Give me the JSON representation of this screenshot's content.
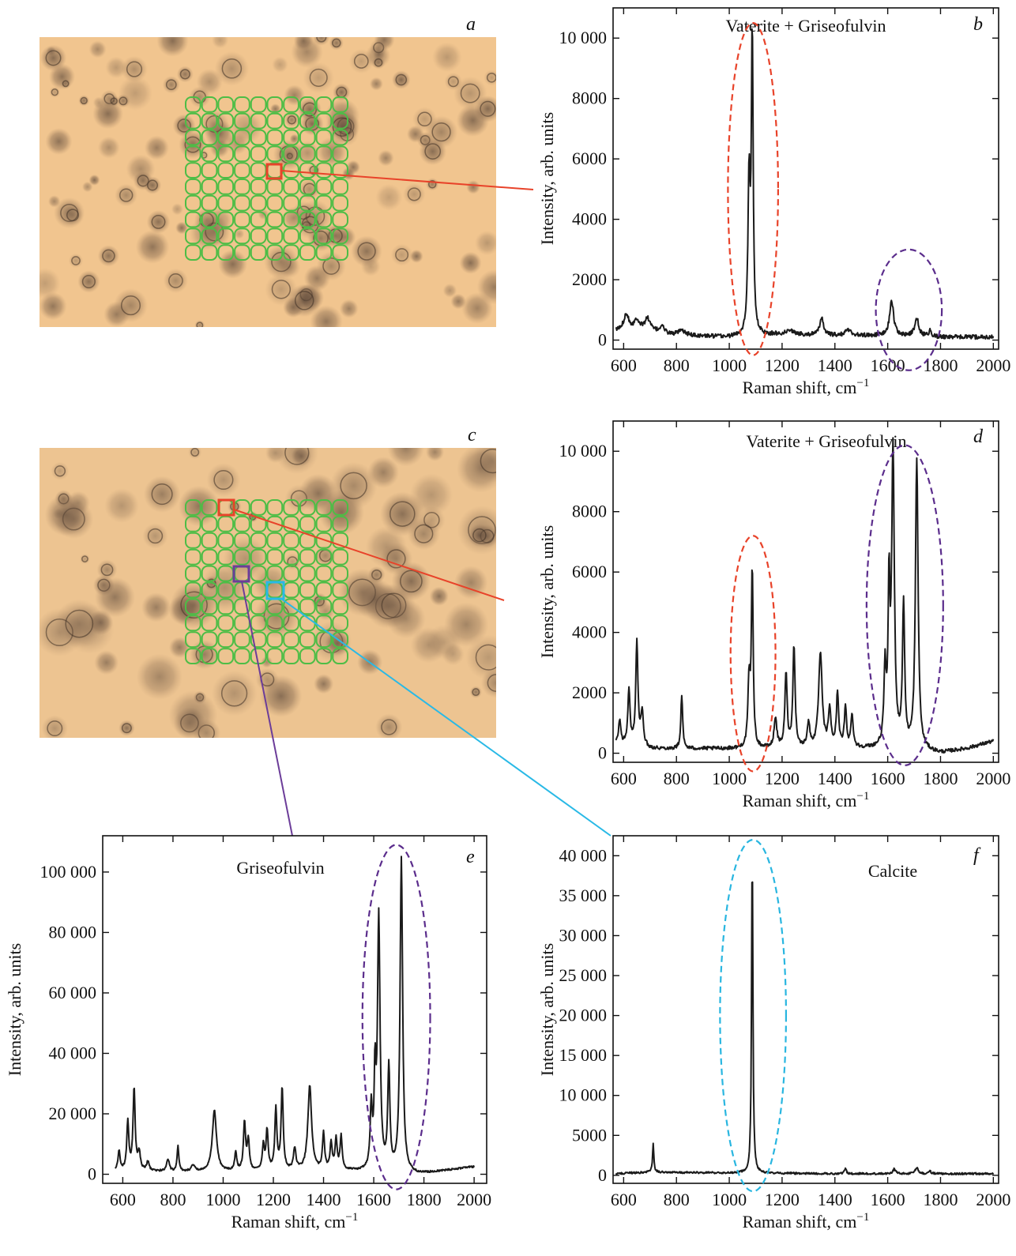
{
  "panels": {
    "a": {
      "letter": "a"
    },
    "c": {
      "letter": "c"
    }
  },
  "colors": {
    "line": "#1a1a1a",
    "grid_overlay": "#4dbd46",
    "photo_background": "#f0c48e",
    "red_marker": "#e8432a",
    "purple_marker": "#6c3d99",
    "cyan_marker": "#29b9e6",
    "red_ellipse": "#e8432a",
    "purple_ellipse": "#5b2d8c",
    "cyan_ellipse": "#29b6e0"
  },
  "chart_data": [
    {
      "id": "b",
      "letter": "b",
      "type": "line",
      "title": "Vaterite + Griseofulvin",
      "xlabel": "Raman shift, cm",
      "xlabel_sup": "−1",
      "ylabel": "Intensity, arb. units",
      "xlim": [
        560,
        2020
      ],
      "ylim": [
        -300,
        11000
      ],
      "xticks": [
        600,
        800,
        1000,
        1200,
        1400,
        1600,
        1800,
        2000
      ],
      "xtick_labels": [
        "600",
        "800",
        "1000",
        "1200",
        "1400",
        "1600",
        "1800",
        "2000"
      ],
      "yticks": [
        0,
        2000,
        4000,
        6000,
        8000,
        10000
      ],
      "ytick_labels": [
        "0",
        "2000",
        "4000",
        "6000",
        "8000",
        "10 000"
      ],
      "baseline": {
        "points": [
          [
            570,
            300
          ],
          [
            700,
            300
          ],
          [
            800,
            150
          ],
          [
            1000,
            100
          ],
          [
            1200,
            200
          ],
          [
            1400,
            150
          ],
          [
            1600,
            150
          ],
          [
            1800,
            100
          ],
          [
            2000,
            100
          ]
        ],
        "noise": 70
      },
      "peaks": [
        [
          610,
          550,
          12
        ],
        [
          650,
          350,
          12
        ],
        [
          690,
          400,
          12
        ],
        [
          745,
          250,
          8
        ],
        [
          820,
          150,
          20
        ],
        [
          1075,
          5100,
          5
        ],
        [
          1087,
          9800,
          4
        ],
        [
          1230,
          150,
          12
        ],
        [
          1350,
          600,
          8
        ],
        [
          1450,
          200,
          12
        ],
        [
          1615,
          1150,
          9
        ],
        [
          1710,
          600,
          9
        ],
        [
          1760,
          200,
          6
        ]
      ],
      "ellipses": [
        {
          "cx": 1090,
          "cy": 5000,
          "rx": 95,
          "ry": 5500,
          "color": "red"
        },
        {
          "cx": 1680,
          "cy": 1000,
          "rx": 125,
          "ry": 2000,
          "color": "purple"
        }
      ]
    },
    {
      "id": "d",
      "letter": "d",
      "type": "line",
      "title": "Vaterite + Griseofulvin",
      "xlabel": "Raman shift, cm",
      "xlabel_sup": "−1",
      "ylabel": "Intensity, arb. units",
      "xlim": [
        560,
        2020
      ],
      "ylim": [
        -300,
        11000
      ],
      "xticks": [
        600,
        800,
        1000,
        1200,
        1400,
        1600,
        1800,
        2000
      ],
      "xtick_labels": [
        "600",
        "800",
        "1000",
        "1200",
        "1400",
        "1600",
        "1800",
        "2000"
      ],
      "yticks": [
        0,
        2000,
        4000,
        6000,
        8000,
        10000
      ],
      "ytick_labels": [
        "0",
        "2000",
        "4000",
        "6000",
        "8000",
        "10 000"
      ],
      "baseline": {
        "points": [
          [
            570,
            300
          ],
          [
            700,
            150
          ],
          [
            900,
            150
          ],
          [
            1100,
            150
          ],
          [
            1300,
            150
          ],
          [
            1500,
            150
          ],
          [
            1700,
            100
          ],
          [
            1800,
            0
          ],
          [
            1900,
            150
          ],
          [
            2000,
            400
          ]
        ],
        "noise": 60
      },
      "peaks": [
        [
          585,
          800,
          5
        ],
        [
          620,
          1800,
          5
        ],
        [
          650,
          3400,
          5
        ],
        [
          670,
          1100,
          6
        ],
        [
          820,
          1800,
          4
        ],
        [
          1075,
          2200,
          5
        ],
        [
          1087,
          5900,
          4
        ],
        [
          1175,
          1000,
          6
        ],
        [
          1215,
          2500,
          5
        ],
        [
          1245,
          3400,
          5
        ],
        [
          1300,
          800,
          6
        ],
        [
          1345,
          3100,
          8
        ],
        [
          1380,
          1200,
          6
        ],
        [
          1410,
          1800,
          5
        ],
        [
          1440,
          1300,
          5
        ],
        [
          1465,
          1100,
          5
        ],
        [
          1590,
          2500,
          5
        ],
        [
          1605,
          5000,
          4
        ],
        [
          1620,
          9800,
          6
        ],
        [
          1660,
          4700,
          5
        ],
        [
          1710,
          9600,
          6
        ]
      ],
      "ellipses": [
        {
          "cx": 1090,
          "cy": 3300,
          "rx": 85,
          "ry": 3900,
          "color": "red"
        },
        {
          "cx": 1665,
          "cy": 4900,
          "rx": 145,
          "ry": 5300,
          "color": "purple"
        }
      ]
    },
    {
      "id": "e",
      "letter": "e",
      "type": "line",
      "title": "Griseofulvin",
      "xlabel": "Raman shift, cm",
      "xlabel_sup": "−1",
      "ylabel": "Intensity, arb. units",
      "xlim": [
        520,
        2050
      ],
      "ylim": [
        -3000,
        112000
      ],
      "xticks": [
        600,
        800,
        1000,
        1200,
        1400,
        1600,
        1800,
        2000
      ],
      "xtick_labels": [
        "600",
        "800",
        "1000",
        "1200",
        "1400",
        "1600",
        "1800",
        "2000"
      ],
      "yticks": [
        0,
        20000,
        40000,
        60000,
        80000,
        100000
      ],
      "ytick_labels": [
        "0",
        "20 000",
        "40 000",
        "60 000",
        "80 000",
        "100 000"
      ],
      "baseline": {
        "points": [
          [
            570,
            1000
          ],
          [
            900,
            800
          ],
          [
            1200,
            1000
          ],
          [
            1500,
            1000
          ],
          [
            1780,
            0
          ],
          [
            2000,
            2500
          ]
        ],
        "noise": 300
      },
      "peaks": [
        [
          585,
          6500,
          5
        ],
        [
          620,
          16000,
          5
        ],
        [
          645,
          27000,
          5
        ],
        [
          665,
          6000,
          6
        ],
        [
          700,
          3000,
          6
        ],
        [
          780,
          4000,
          6
        ],
        [
          820,
          8500,
          4
        ],
        [
          880,
          2000,
          8
        ],
        [
          965,
          20000,
          10
        ],
        [
          1050,
          6000,
          5
        ],
        [
          1085,
          16000,
          5
        ],
        [
          1100,
          10000,
          5
        ],
        [
          1160,
          8000,
          5
        ],
        [
          1175,
          13000,
          5
        ],
        [
          1210,
          20000,
          5
        ],
        [
          1235,
          27000,
          5
        ],
        [
          1285,
          7000,
          6
        ],
        [
          1345,
          28000,
          9
        ],
        [
          1400,
          12000,
          5
        ],
        [
          1430,
          9000,
          5
        ],
        [
          1450,
          10000,
          5
        ],
        [
          1470,
          11000,
          5
        ],
        [
          1590,
          20000,
          5
        ],
        [
          1605,
          29000,
          4
        ],
        [
          1620,
          84000,
          6
        ],
        [
          1660,
          34000,
          5
        ],
        [
          1710,
          104000,
          6
        ]
      ],
      "ellipses": [
        {
          "cx": 1690,
          "cy": 52000,
          "rx": 135,
          "ry": 57000,
          "color": "purple"
        }
      ]
    },
    {
      "id": "f",
      "letter": "f",
      "type": "line",
      "title": "Calcite",
      "xlabel": "Raman shift, cm",
      "xlabel_sup": "−1",
      "ylabel": "Intensity, arb. units",
      "xlim": [
        560,
        2020
      ],
      "ylim": [
        -1000,
        42500
      ],
      "xticks": [
        600,
        800,
        1000,
        1200,
        1400,
        1600,
        1800,
        2000
      ],
      "xtick_labels": [
        "600",
        "800",
        "1000",
        "1200",
        "1400",
        "1600",
        "1800",
        "2000"
      ],
      "yticks": [
        0,
        5000,
        10000,
        15000,
        20000,
        25000,
        30000,
        35000,
        40000
      ],
      "ytick_labels": [
        "0",
        "5000",
        "10 000",
        "15 000",
        "20 000",
        "25 000",
        "30 000",
        "35 000",
        "40 000"
      ],
      "baseline": {
        "points": [
          [
            570,
            200
          ],
          [
            700,
            400
          ],
          [
            1000,
            300
          ],
          [
            1400,
            200
          ],
          [
            2000,
            200
          ]
        ],
        "noise": 120
      },
      "peaks": [
        [
          712,
          3500,
          3
        ],
        [
          1087,
          40500,
          3
        ],
        [
          1440,
          700,
          4
        ],
        [
          1625,
          600,
          6
        ],
        [
          1710,
          800,
          6
        ],
        [
          1760,
          300,
          6
        ]
      ],
      "ellipses": [
        {
          "cx": 1090,
          "cy": 20000,
          "rx": 125,
          "ry": 22000,
          "color": "cyan"
        }
      ]
    }
  ]
}
